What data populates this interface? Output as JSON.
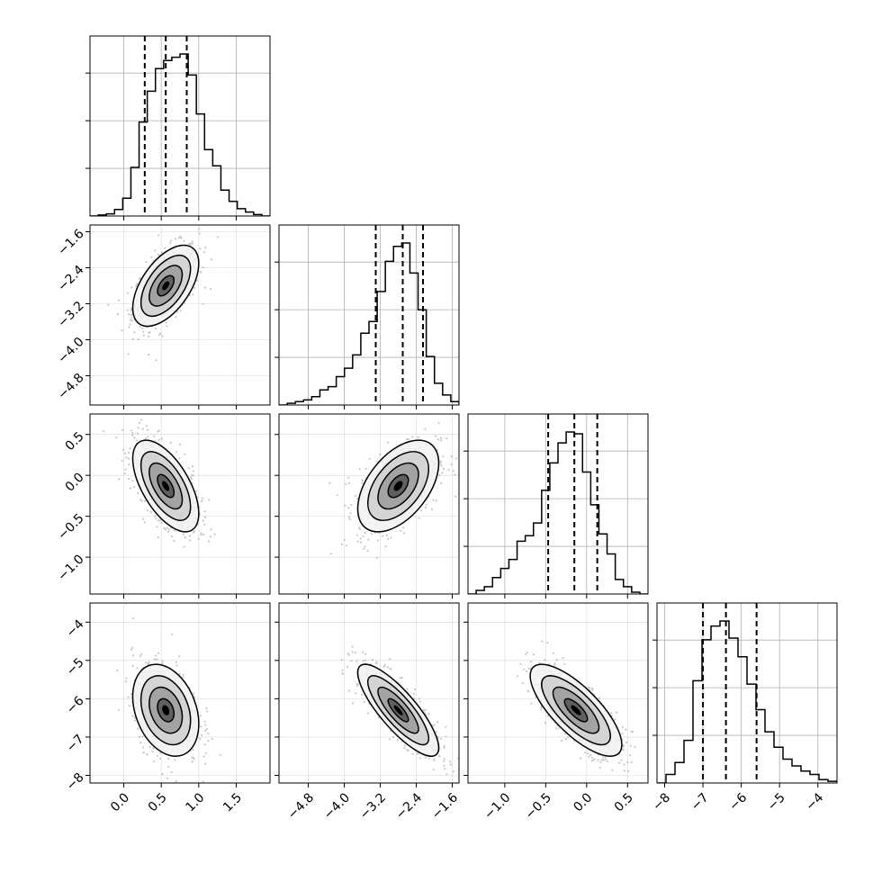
{
  "chart_data": {
    "type": "corner",
    "n_params": 4,
    "colors": {
      "line": "#000000",
      "grid": "#b0b0b0",
      "scatter": "#9a9a9a",
      "background": "#ffffff"
    },
    "params": [
      {
        "range": [
          -0.45,
          1.95
        ],
        "ticks": [
          0.0,
          0.5,
          1.0,
          1.5
        ],
        "tick_labels": [
          "0.0",
          "0.5",
          "1.0",
          "1.5"
        ],
        "quantiles": [
          0.28,
          0.56,
          0.84
        ],
        "mean": 0.56,
        "sd": 0.22,
        "hist_bins": [
          0.0,
          0.006,
          0.013,
          0.04,
          0.11,
          0.3,
          0.58,
          0.77,
          0.91,
          0.96,
          0.98,
          1.0,
          0.87,
          0.63,
          0.41,
          0.31,
          0.16,
          0.09,
          0.045,
          0.024,
          0.009,
          0.0
        ]
      },
      {
        "range": [
          -5.45,
          -1.45
        ],
        "ticks": [
          -4.8,
          -4.0,
          -3.2,
          -2.4,
          -1.6
        ],
        "tick_labels": [
          "−4.8",
          "−4.0",
          "−3.2",
          "−2.4",
          "−1.6"
        ],
        "quantiles": [
          -3.3,
          -2.7,
          -2.25
        ],
        "mean": -2.8,
        "sd": 0.45,
        "hist_bins": [
          0.0,
          0.01,
          0.02,
          0.03,
          0.05,
          0.09,
          0.11,
          0.17,
          0.22,
          0.3,
          0.43,
          0.5,
          0.68,
          0.86,
          0.95,
          0.97,
          0.79,
          0.57,
          0.29,
          0.13,
          0.06,
          0.02
        ]
      },
      {
        "range": [
          -1.45,
          0.75
        ],
        "ticks": [
          -1.0,
          -0.5,
          0.0,
          0.5
        ],
        "tick_labels": [
          "−1.0",
          "−0.5",
          "0.0",
          "0.5"
        ],
        "quantiles": [
          -0.47,
          -0.15,
          0.13
        ],
        "mean": -0.13,
        "sd": 0.28,
        "hist_bins": [
          0.0,
          0.02,
          0.04,
          0.09,
          0.14,
          0.19,
          0.29,
          0.32,
          0.39,
          0.57,
          0.72,
          0.83,
          0.89,
          0.88,
          0.67,
          0.49,
          0.33,
          0.22,
          0.08,
          0.04,
          0.01,
          0.0
        ]
      },
      {
        "range": [
          -8.2,
          -3.5
        ],
        "ticks": [
          -8,
          -7,
          -6,
          -5,
          -4
        ],
        "tick_labels": [
          "−8",
          "−7",
          "−6",
          "−5",
          "−4"
        ],
        "quantiles": [
          -7.0,
          -6.4,
          -5.6
        ],
        "mean": -6.3,
        "sd": 0.6,
        "hist_bins": [
          0.0,
          0.05,
          0.12,
          0.25,
          0.6,
          0.84,
          0.92,
          0.95,
          0.85,
          0.74,
          0.58,
          0.43,
          0.3,
          0.21,
          0.14,
          0.1,
          0.07,
          0.05,
          0.02,
          0.01
        ]
      }
    ],
    "pairs": [
      {
        "row": 1,
        "col": 0,
        "rho": 0.55
      },
      {
        "row": 2,
        "col": 0,
        "rho": -0.6
      },
      {
        "row": 2,
        "col": 1,
        "rho": 0.5
      },
      {
        "row": 3,
        "col": 0,
        "rho": -0.3
      },
      {
        "row": 3,
        "col": 1,
        "rho": -0.82
      },
      {
        "row": 3,
        "col": 2,
        "rho": -0.75
      }
    ],
    "contour_levels_sigma": [
      0.5,
      1.0,
      1.5,
      2.0
    ],
    "scatter_points_per_panel": 700,
    "grid": true
  }
}
